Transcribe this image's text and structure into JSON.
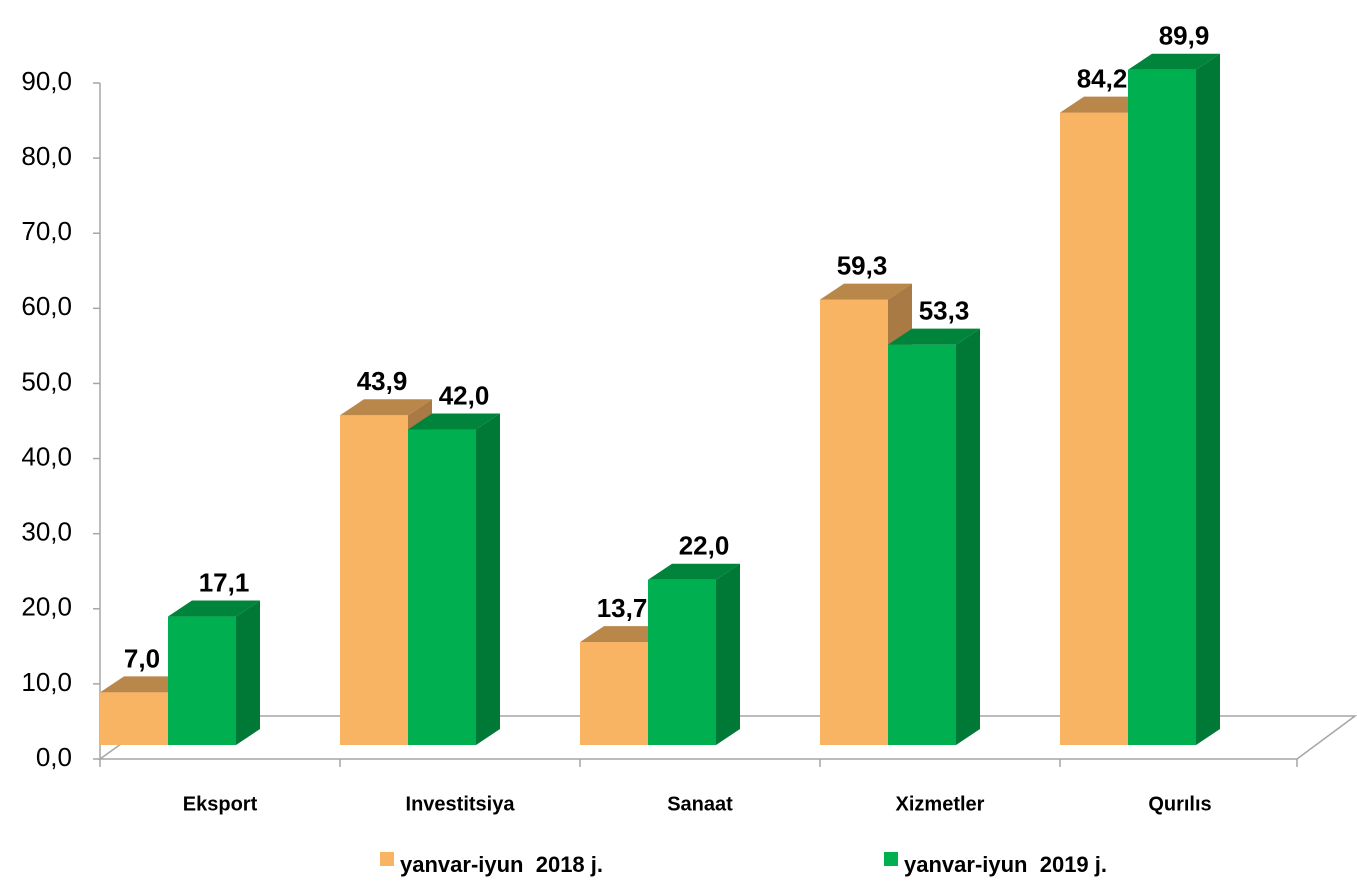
{
  "chart_data": {
    "type": "bar3d",
    "categories": [
      "Eksport",
      "Investitsiya",
      "Sanaat",
      "Xizmetler",
      "Qurılıs"
    ],
    "series": [
      {
        "name": "yanvar-iyun  2018 j.",
        "color": "#f8b462",
        "values": [
          7.0,
          43.9,
          13.7,
          59.3,
          84.2
        ],
        "value_labels": [
          "7,0",
          "43,9",
          "13,7",
          "59,3",
          "84,2"
        ]
      },
      {
        "name": "yanvar-iyun  2019 j.",
        "color": "#00b050",
        "values": [
          17.1,
          42.0,
          22.0,
          53.3,
          89.9
        ],
        "value_labels": [
          "17,1",
          "42,0",
          "22,0",
          "53,3",
          "89,9"
        ]
      }
    ],
    "ylim": [
      0,
      90
    ],
    "yticks": [
      {
        "value": 0,
        "label": "0,0"
      },
      {
        "value": 10,
        "label": "10,0"
      },
      {
        "value": 20,
        "label": "20,0"
      },
      {
        "value": 30,
        "label": "30,0"
      },
      {
        "value": 40,
        "label": "40,0"
      },
      {
        "value": 50,
        "label": "50,0"
      },
      {
        "value": 60,
        "label": "60,0"
      },
      {
        "value": 70,
        "label": "70,0"
      },
      {
        "value": 80,
        "label": "80,0"
      },
      {
        "value": 90,
        "label": "90,0"
      }
    ],
    "legend": "bottom"
  }
}
